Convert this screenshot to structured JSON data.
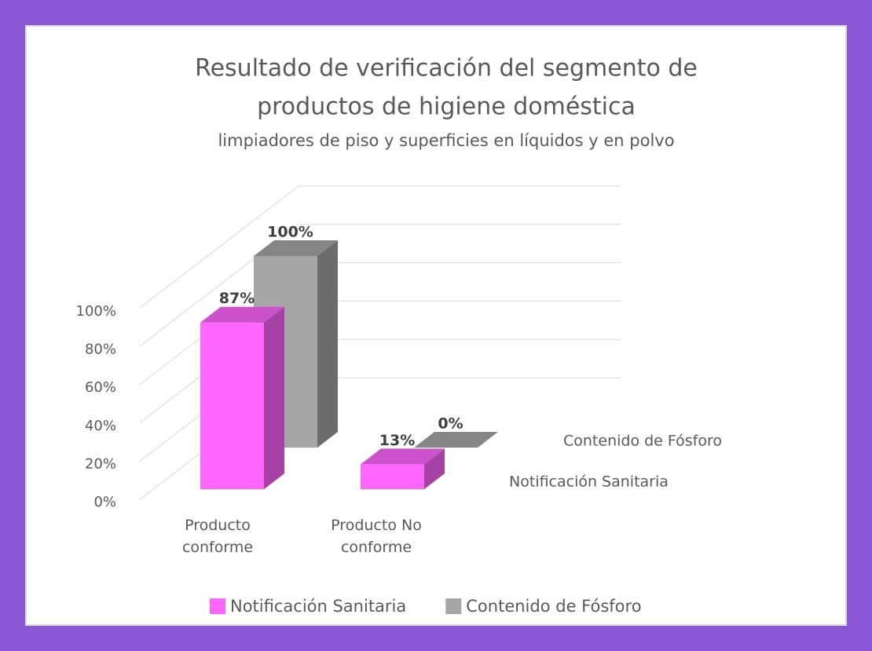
{
  "chart_data": {
    "type": "bar3d",
    "title": "Resultado de verificación del segmento de",
    "title_line2": "productos de higiene doméstica",
    "subtitle": "limpiadores de piso y superficies en líquidos y en polvo",
    "categories": [
      "Producto conforme",
      "Producto No conforme"
    ],
    "series": [
      {
        "name": "Notificación Sanitaria",
        "color": "#ff66ff",
        "values": [
          87,
          13
        ],
        "value_labels": [
          "87%",
          "13%"
        ]
      },
      {
        "name": "Contenido de Fósforo",
        "color": "#a6a6a6",
        "values": [
          100,
          0
        ],
        "value_labels": [
          "100%",
          "0%"
        ]
      }
    ],
    "ylim": [
      0,
      100
    ],
    "yticks": [
      {
        "value": 0,
        "label": "0%"
      },
      {
        "value": 20,
        "label": "20%"
      },
      {
        "value": 40,
        "label": "40%"
      },
      {
        "value": 60,
        "label": "60%"
      },
      {
        "value": 80,
        "label": "80%"
      },
      {
        "value": 100,
        "label": "100%"
      }
    ],
    "grid": true,
    "legend": "bottom"
  }
}
